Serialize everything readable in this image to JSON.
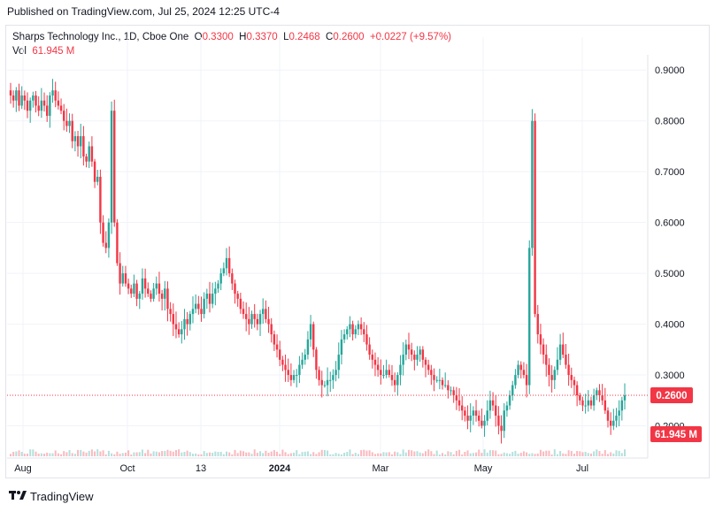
{
  "header": {
    "published": "Published on TradingView.com, Jul 25, 2024 12:25 UTC-4"
  },
  "legend": {
    "symbol": "Sharps Technology Inc., 1D, Cboe One",
    "o_label": "O",
    "o_value": "0.3300",
    "h_label": "H",
    "h_value": "0.3370",
    "l_label": "L",
    "l_value": "0.2468",
    "c_label": "C",
    "c_value": "0.2600",
    "change": "+0.0227 (+9.57%)",
    "vol_label": "Vol",
    "vol_value": "61.945 M"
  },
  "footer": {
    "brand": "TradingView"
  },
  "colors": {
    "up": "#26a69a",
    "down": "#f23645",
    "grid": "#f0f3fa",
    "axis_text": "#131722"
  },
  "chart_data": {
    "type": "candlestick",
    "title": "Sharps Technology Inc., 1D, Cboe One",
    "ylim": [
      0.14,
      0.93
    ],
    "y_ticks": [
      "0.9000",
      "0.8000",
      "0.7000",
      "0.6000",
      "0.5000",
      "0.4000",
      "0.3000",
      "0.2000"
    ],
    "x_ticks": [
      "Aug",
      "Oct",
      "13",
      "2024",
      "Mar",
      "May",
      "Jul"
    ],
    "last_price_label": "0.2600",
    "volume_label": "61.945 M",
    "grid": true,
    "close_series": [
      0.85,
      0.84,
      0.86,
      0.83,
      0.85,
      0.84,
      0.82,
      0.84,
      0.85,
      0.83,
      0.82,
      0.84,
      0.83,
      0.81,
      0.85,
      0.86,
      0.84,
      0.83,
      0.82,
      0.8,
      0.79,
      0.8,
      0.76,
      0.77,
      0.75,
      0.77,
      0.73,
      0.72,
      0.75,
      0.72,
      0.68,
      0.69,
      0.6,
      0.56,
      0.55,
      0.6,
      0.82,
      0.6,
      0.52,
      0.48,
      0.5,
      0.48,
      0.47,
      0.46,
      0.48,
      0.45,
      0.46,
      0.49,
      0.47,
      0.46,
      0.45,
      0.47,
      0.48,
      0.46,
      0.45,
      0.47,
      0.43,
      0.42,
      0.4,
      0.39,
      0.38,
      0.39,
      0.41,
      0.4,
      0.42,
      0.43,
      0.44,
      0.43,
      0.42,
      0.45,
      0.46,
      0.44,
      0.46,
      0.47,
      0.48,
      0.5,
      0.51,
      0.53,
      0.5,
      0.48,
      0.46,
      0.45,
      0.43,
      0.42,
      0.41,
      0.4,
      0.42,
      0.41,
      0.4,
      0.42,
      0.43,
      0.41,
      0.4,
      0.38,
      0.36,
      0.35,
      0.33,
      0.32,
      0.31,
      0.3,
      0.29,
      0.3,
      0.3,
      0.32,
      0.33,
      0.34,
      0.37,
      0.4,
      0.35,
      0.31,
      0.29,
      0.28,
      0.28,
      0.29,
      0.29,
      0.3,
      0.31,
      0.34,
      0.37,
      0.38,
      0.39,
      0.4,
      0.38,
      0.39,
      0.4,
      0.39,
      0.38,
      0.36,
      0.34,
      0.33,
      0.32,
      0.31,
      0.3,
      0.3,
      0.31,
      0.3,
      0.29,
      0.28,
      0.3,
      0.32,
      0.34,
      0.36,
      0.35,
      0.34,
      0.33,
      0.34,
      0.35,
      0.33,
      0.32,
      0.31,
      0.3,
      0.29,
      0.29,
      0.29,
      0.28,
      0.28,
      0.27,
      0.27,
      0.26,
      0.25,
      0.24,
      0.23,
      0.22,
      0.21,
      0.22,
      0.23,
      0.22,
      0.21,
      0.2,
      0.21,
      0.23,
      0.25,
      0.24,
      0.22,
      0.2,
      0.19,
      0.23,
      0.24,
      0.26,
      0.28,
      0.3,
      0.32,
      0.31,
      0.3,
      0.28,
      0.55,
      0.8,
      0.42,
      0.38,
      0.36,
      0.34,
      0.32,
      0.3,
      0.29,
      0.31,
      0.33,
      0.36,
      0.34,
      0.32,
      0.3,
      0.29,
      0.28,
      0.26,
      0.25,
      0.24,
      0.24,
      0.25,
      0.24,
      0.26,
      0.27,
      0.26,
      0.25,
      0.23,
      0.21,
      0.2,
      0.21,
      0.22,
      0.23,
      0.25,
      0.26
    ]
  }
}
